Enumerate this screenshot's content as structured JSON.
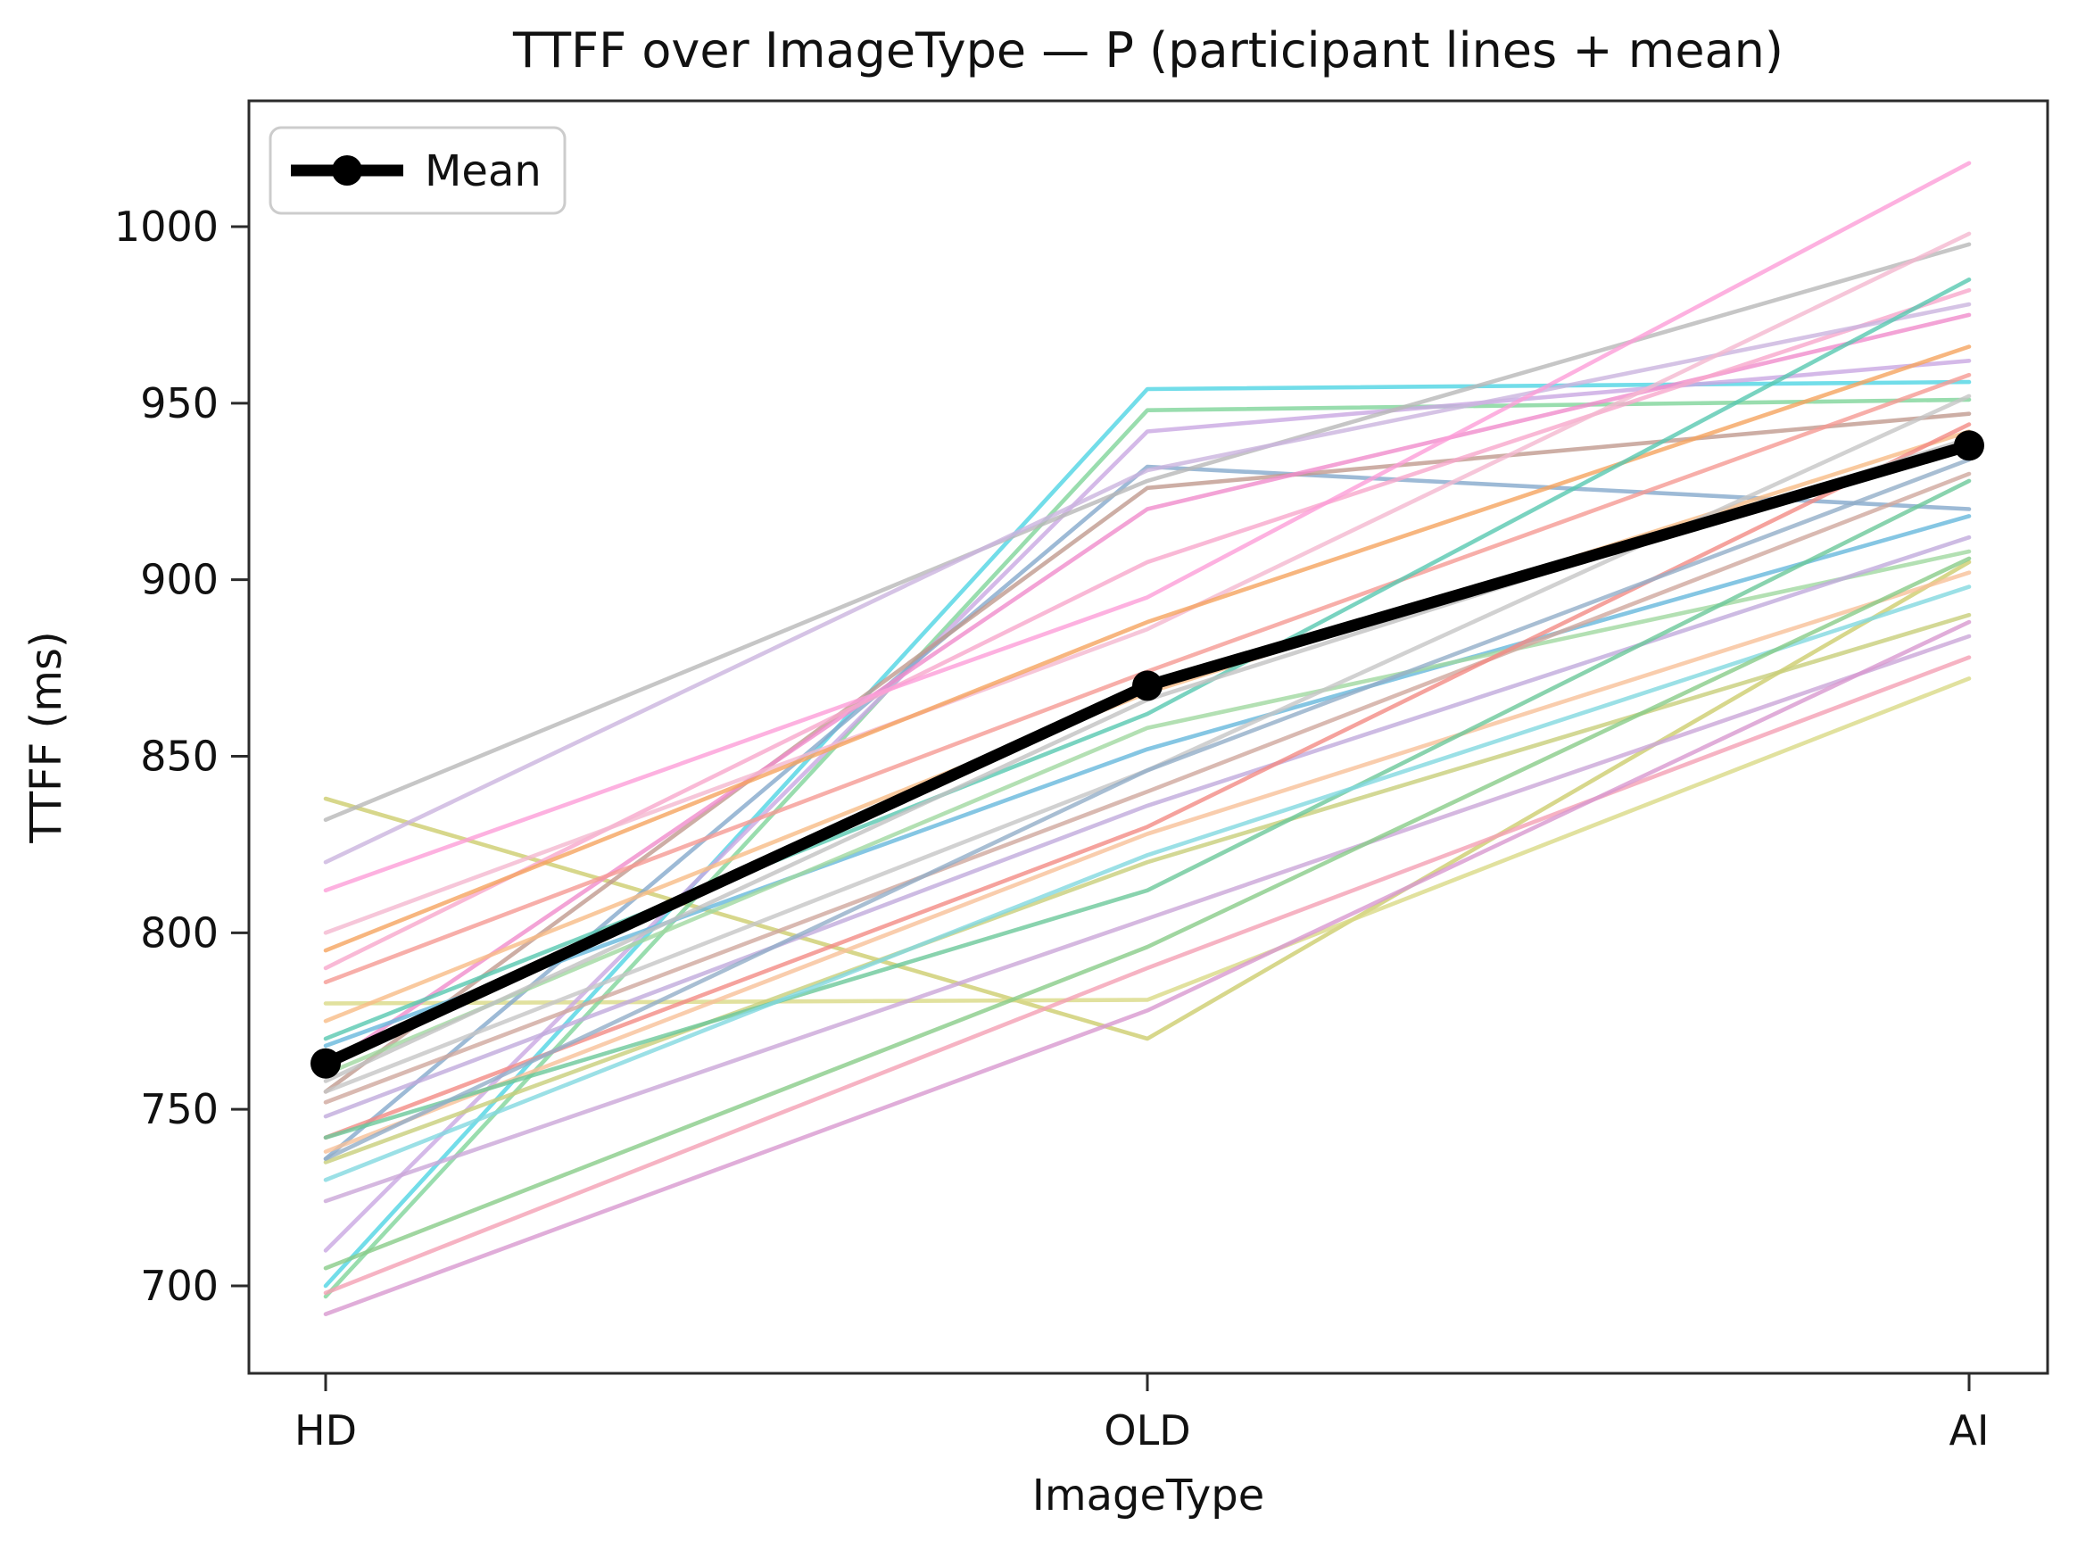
{
  "figure": {
    "background": "#ffffff"
  },
  "chart_data": {
    "type": "line",
    "title": "TTFF over ImageType — P (participant lines + mean)",
    "xlabel": "ImageType",
    "ylabel": "TTFF (ms)",
    "categories": [
      "HD",
      "OLD",
      "AI"
    ],
    "y_ticks": [
      700,
      750,
      800,
      850,
      900,
      950,
      1000
    ],
    "ylim": [
      675,
      1036
    ],
    "grid": false,
    "legend": {
      "label": "Mean",
      "position": "upper left",
      "marker": "circle",
      "line_color": "#000000"
    },
    "mean_series": {
      "name": "Mean",
      "values": [
        763,
        870,
        938
      ],
      "color": "#000000"
    },
    "participants": [
      {
        "values": [
          838,
          770,
          905
        ],
        "color": "#cdcd6e"
      },
      {
        "values": [
          780,
          781,
          872
        ],
        "color": "#d9d986"
      },
      {
        "values": [
          700,
          954,
          956
        ],
        "color": "#4fd4e4"
      },
      {
        "values": [
          697,
          948,
          951
        ],
        "color": "#7fd49a"
      },
      {
        "values": [
          710,
          942,
          962
        ],
        "color": "#c9a8e2"
      },
      {
        "values": [
          736,
          932,
          920
        ],
        "color": "#85a9cc"
      },
      {
        "values": [
          755,
          926,
          947
        ],
        "color": "#c09a8e"
      },
      {
        "values": [
          762,
          920,
          975
        ],
        "color": "#f08ccc"
      },
      {
        "values": [
          790,
          905,
          982
        ],
        "color": "#f8a8cc"
      },
      {
        "values": [
          832,
          928,
          995
        ],
        "color": "#b8b8b8"
      },
      {
        "values": [
          820,
          931,
          978
        ],
        "color": "#cbb4de"
      },
      {
        "values": [
          812,
          895,
          1018
        ],
        "color": "#fc9ed8"
      },
      {
        "values": [
          800,
          886,
          998
        ],
        "color": "#f4b8d0"
      },
      {
        "values": [
          795,
          888,
          966
        ],
        "color": "#f5a45f"
      },
      {
        "values": [
          786,
          874,
          958
        ],
        "color": "#f59a94"
      },
      {
        "values": [
          775,
          868,
          942
        ],
        "color": "#f8bc86"
      },
      {
        "values": [
          770,
          862,
          985
        ],
        "color": "#58c8b0"
      },
      {
        "values": [
          768,
          852,
          918
        ],
        "color": "#66b8dc"
      },
      {
        "values": [
          760,
          858,
          908
        ],
        "color": "#a0d8a0"
      },
      {
        "values": [
          755,
          846,
          952
        ],
        "color": "#c6c6c6"
      },
      {
        "values": [
          752,
          840,
          930
        ],
        "color": "#d0a89e"
      },
      {
        "values": [
          748,
          836,
          912
        ],
        "color": "#c0aadc"
      },
      {
        "values": [
          742,
          830,
          944
        ],
        "color": "#f28b84"
      },
      {
        "values": [
          738,
          828,
          902
        ],
        "color": "#f8c098"
      },
      {
        "values": [
          735,
          820,
          890
        ],
        "color": "#c8ce7a"
      },
      {
        "values": [
          742,
          812,
          928
        ],
        "color": "#6cc89a"
      },
      {
        "values": [
          736,
          846,
          934
        ],
        "color": "#92aec8"
      },
      {
        "values": [
          730,
          822,
          898
        ],
        "color": "#82d8e0"
      },
      {
        "values": [
          724,
          804,
          884
        ],
        "color": "#caa6d8"
      },
      {
        "values": [
          705,
          796,
          906
        ],
        "color": "#88cc88"
      },
      {
        "values": [
          698,
          790,
          878
        ],
        "color": "#f4a0b4"
      },
      {
        "values": [
          692,
          778,
          888
        ],
        "color": "#d898d0"
      },
      {
        "values": [
          758,
          866,
          940
        ],
        "color": "#c2c2c2"
      }
    ]
  }
}
